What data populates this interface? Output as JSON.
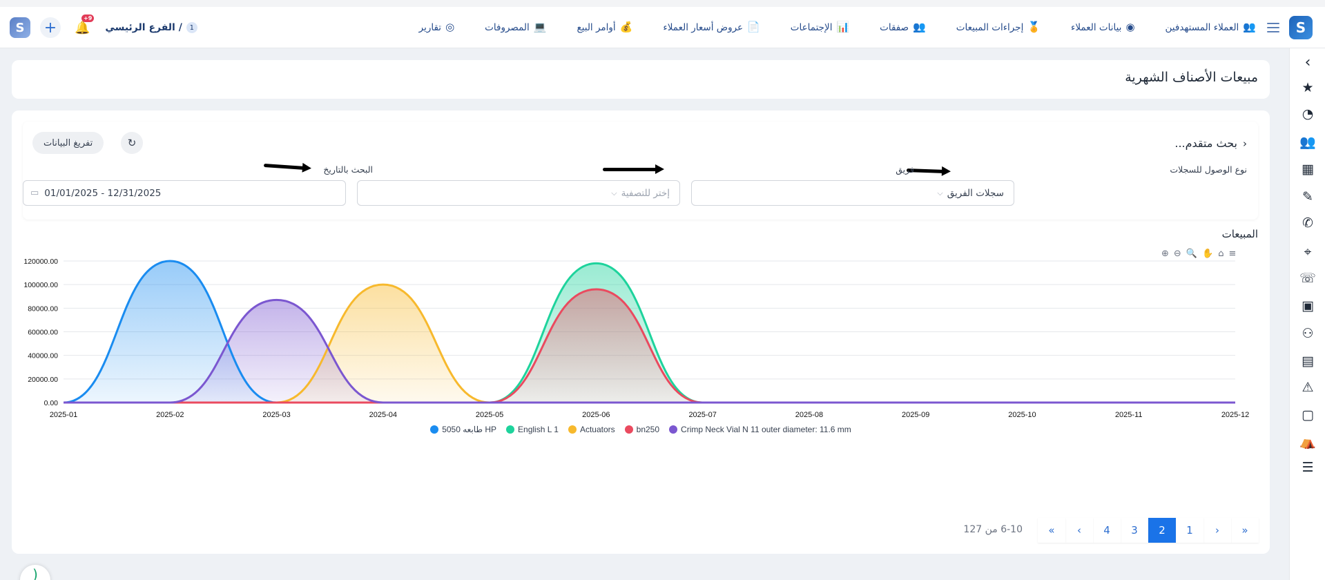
{
  "header": {
    "brand_logo": "S",
    "menu": [
      {
        "label": "العملاء المستهدفين",
        "icon": "👥"
      },
      {
        "label": "بيانات العملاء",
        "icon": "◉"
      },
      {
        "label": "إجراءات المبيعات",
        "icon": "🏅"
      },
      {
        "label": "صفقات",
        "icon": "👥"
      },
      {
        "label": "الإجتماعات",
        "icon": "📊"
      },
      {
        "label": "عروض أسعار العملاء",
        "icon": "📄"
      },
      {
        "label": "أوامر البيع",
        "icon": "💰"
      },
      {
        "label": "المصروفات",
        "icon": "💻"
      },
      {
        "label": "تقارير",
        "icon": "◎"
      }
    ],
    "branch_label": "الفرع الرئيسي /",
    "branch_number": "1",
    "notification_count": "+9"
  },
  "page": {
    "title": "مبيعات الأصناف الشهرية"
  },
  "search": {
    "toggle_label": "بحث متقدم...",
    "export_label": "تفريغ البيانات",
    "access_label": "نوع الوصول للسجلات",
    "access_value": "سجلات الفريق",
    "team_label": "فريق",
    "team_placeholder": "إختر للتصفية",
    "date_label": "البحث بالتاريخ",
    "date_value": "01/01/2025 - 12/31/2025"
  },
  "chart_section": {
    "title": "المبيعات"
  },
  "chart_data": {
    "type": "area",
    "x": [
      "2025-01",
      "2025-02",
      "2025-03",
      "2025-04",
      "2025-05",
      "2025-06",
      "2025-07",
      "2025-08",
      "2025-09",
      "2025-10",
      "2025-11",
      "2025-12"
    ],
    "ylim": [
      0,
      120000
    ],
    "ytick_labels": [
      "0.00",
      "20000.00",
      "40000.00",
      "60000.00",
      "80000.00",
      "100000.00",
      "120000.00"
    ],
    "smooth": true,
    "grid": true,
    "legend_position": "bottom",
    "series": [
      {
        "name": "5050 طابعه HP",
        "color": "#1a8cf0",
        "values": [
          0,
          120000,
          0,
          0,
          0,
          0,
          0,
          0,
          0,
          0,
          0,
          0
        ]
      },
      {
        "name": "English L 1",
        "color": "#1ed39c",
        "values": [
          0,
          0,
          0,
          0,
          0,
          118000,
          0,
          0,
          0,
          0,
          0,
          0
        ]
      },
      {
        "name": "Actuators",
        "color": "#f7b92d",
        "values": [
          0,
          0,
          0,
          100000,
          0,
          0,
          0,
          0,
          0,
          0,
          0,
          0
        ]
      },
      {
        "name": "bn250",
        "color": "#ea4a5f",
        "values": [
          0,
          0,
          0,
          0,
          0,
          96000,
          0,
          0,
          0,
          0,
          0,
          0
        ]
      },
      {
        "name": "Crimp Neck Vial N 11 outer diameter: 11.6 mm",
        "color": "#7b57d0",
        "values": [
          0,
          0,
          87000,
          0,
          0,
          0,
          0,
          0,
          0,
          0,
          0,
          0
        ]
      }
    ]
  },
  "pagination": {
    "range_text": "6-10 من 127",
    "first": "«",
    "prev": "‹",
    "pages": [
      "1",
      "2",
      "3",
      "4"
    ],
    "active_page": "2",
    "next": "›",
    "last": "»"
  },
  "sidebar_icons": [
    "chevron-left",
    "star",
    "dashboard",
    "users",
    "building",
    "document",
    "phone",
    "target",
    "call",
    "calendar",
    "group",
    "money",
    "warning",
    "video",
    "tent",
    "invoice"
  ],
  "colors": {
    "primary": "#1a73e8",
    "brand": "#1e63b9",
    "badge": "#e23b57"
  }
}
